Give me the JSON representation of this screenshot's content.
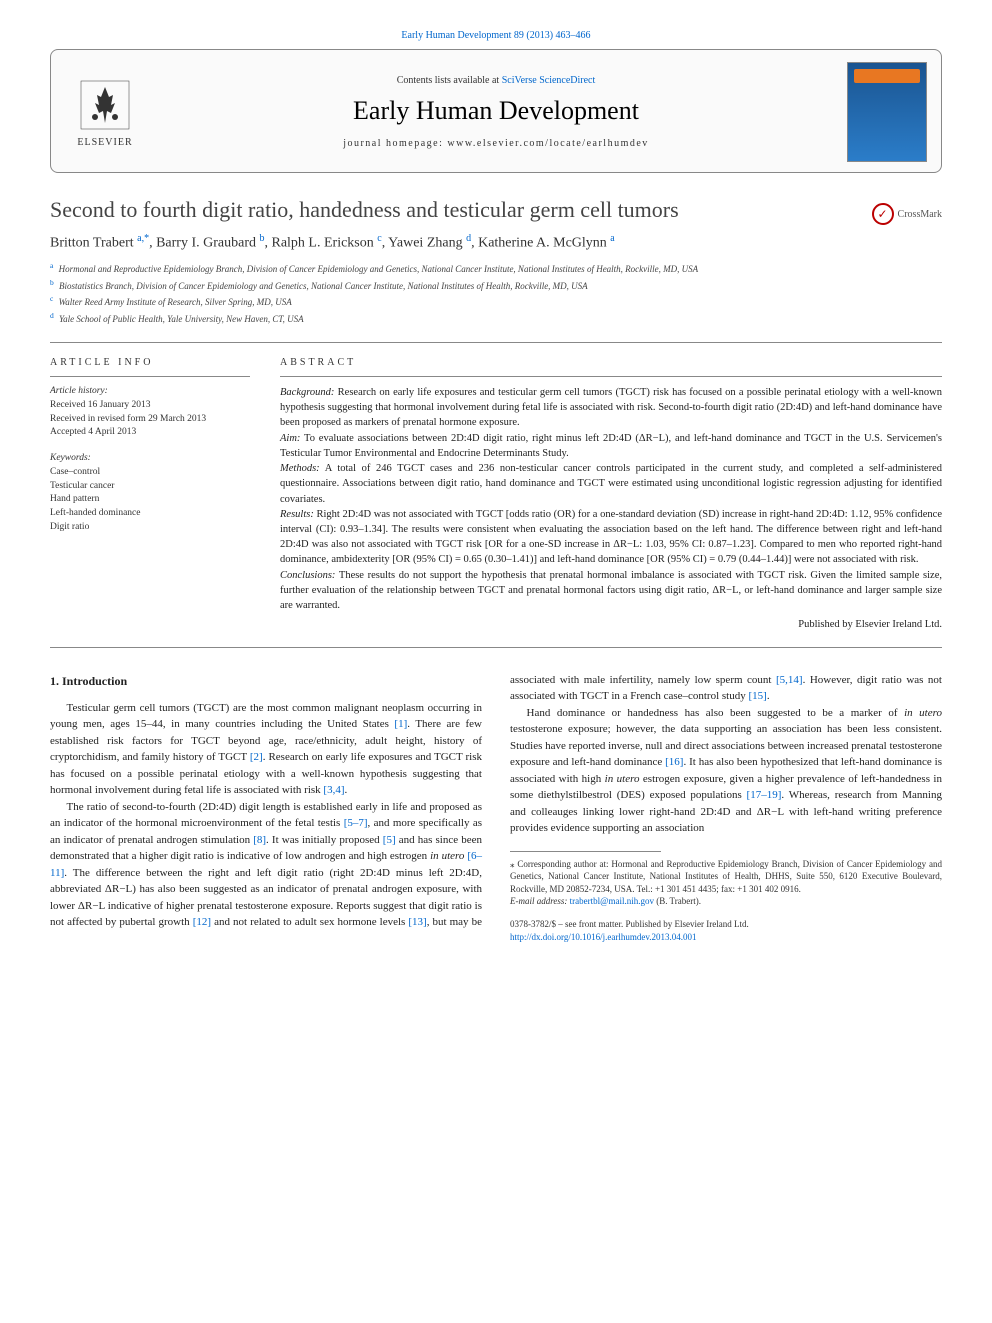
{
  "top_citation": "Early Human Development 89 (2013) 463–466",
  "header": {
    "contents_prefix": "Contents lists available at ",
    "contents_link": "SciVerse ScienceDirect",
    "journal_name": "Early Human Development",
    "homepage_label": "journal homepage: www.elsevier.com/locate/earlhumdev",
    "publisher_logo_text": "ELSEVIER"
  },
  "crossmark_label": "CrossMark",
  "article": {
    "title": "Second to fourth digit ratio, handedness and testicular germ cell tumors",
    "authors_html": "Britton Trabert <sup>a,*</sup>, Barry I. Graubard <sup>b</sup>, Ralph L. Erickson <sup>c</sup>, Yawei Zhang <sup>d</sup>, Katherine A. McGlynn <sup>a</sup>",
    "affiliations": [
      {
        "sup": "a",
        "text": "Hormonal and Reproductive Epidemiology Branch, Division of Cancer Epidemiology and Genetics, National Cancer Institute, National Institutes of Health, Rockville, MD, USA"
      },
      {
        "sup": "b",
        "text": "Biostatistics Branch, Division of Cancer Epidemiology and Genetics, National Cancer Institute, National Institutes of Health, Rockville, MD, USA"
      },
      {
        "sup": "c",
        "text": "Walter Reed Army Institute of Research, Silver Spring, MD, USA"
      },
      {
        "sup": "d",
        "text": "Yale School of Public Health, Yale University, New Haven, CT, USA"
      }
    ]
  },
  "article_info": {
    "header": "ARTICLE INFO",
    "history_label": "Article history:",
    "history": [
      "Received 16 January 2013",
      "Received in revised form 29 March 2013",
      "Accepted 4 April 2013"
    ],
    "keywords_label": "Keywords:",
    "keywords": [
      "Case–control",
      "Testicular cancer",
      "Hand pattern",
      "Left-handed dominance",
      "Digit ratio"
    ]
  },
  "abstract": {
    "header": "ABSTRACT",
    "background_label": "Background:",
    "background": " Research on early life exposures and testicular germ cell tumors (TGCT) risk has focused on a possible perinatal etiology with a well-known hypothesis suggesting that hormonal involvement during fetal life is associated with risk. Second-to-fourth digit ratio (2D:4D) and left-hand dominance have been proposed as markers of prenatal hormone exposure.",
    "aim_label": "Aim:",
    "aim": " To evaluate associations between 2D:4D digit ratio, right minus left 2D:4D (ΔR−L), and left-hand dominance and TGCT in the U.S. Servicemen's Testicular Tumor Environmental and Endocrine Determinants Study.",
    "methods_label": "Methods:",
    "methods": " A total of 246 TGCT cases and 236 non-testicular cancer controls participated in the current study, and completed a self-administered questionnaire. Associations between digit ratio, hand dominance and TGCT were estimated using unconditional logistic regression adjusting for identified covariates.",
    "results_label": "Results:",
    "results": " Right 2D:4D was not associated with TGCT [odds ratio (OR) for a one-standard deviation (SD) increase in right-hand 2D:4D: 1.12, 95% confidence interval (CI): 0.93–1.34]. The results were consistent when evaluating the association based on the left hand. The difference between right and left-hand 2D:4D was also not associated with TGCT risk [OR for a one-SD increase in ΔR−L: 1.03, 95% CI: 0.87–1.23]. Compared to men who reported right-hand dominance, ambidexterity [OR (95% CI) = 0.65 (0.30–1.41)] and left-hand dominance [OR (95% CI) = 0.79 (0.44–1.44)] were not associated with risk.",
    "conclusions_label": "Conclusions:",
    "conclusions": " These results do not support the hypothesis that prenatal hormonal imbalance is associated with TGCT risk. Given the limited sample size, further evaluation of the relationship between TGCT and prenatal hormonal factors using digit ratio, ΔR−L, or left-hand dominance and larger sample size are warranted.",
    "publisher_line": "Published by Elsevier Ireland Ltd."
  },
  "body": {
    "section_title": "1. Introduction",
    "paragraphs": [
      "Testicular germ cell tumors (TGCT) are the most common malignant neoplasm occurring in young men, ages 15–44, in many countries including the United States [1]. There are few established risk factors for TGCT beyond age, race/ethnicity, adult height, history of cryptorchidism, and family history of TGCT [2]. Research on early life exposures and TGCT risk has focused on a possible perinatal etiology with a well-known hypothesis suggesting that hormonal involvement during fetal life is associated with risk [3,4].",
      "The ratio of second-to-fourth (2D:4D) digit length is established early in life and proposed as an indicator of the hormonal microenvironment of the fetal testis [5–7], and more specifically as an indicator of prenatal androgen stimulation [8]. It was initially proposed [5] and has since been demonstrated that a higher digit ratio is indicative of low androgen and high estrogen in utero [6–11]. The difference between the right and left digit ratio (right 2D:4D minus left 2D:4D, abbreviated ΔR−L) has also been suggested as an indicator of prenatal androgen exposure, with lower ΔR−L indicative of higher prenatal testosterone exposure. Reports suggest that digit ratio is not affected by pubertal growth [12] and not related to adult sex hormone levels [13], but may be associated with male infertility, namely low sperm count [5,14]. However, digit ratio was not associated with TGCT in a French case–control study [15].",
      "Hand dominance or handedness has also been suggested to be a marker of in utero testosterone exposure; however, the data supporting an association has been less consistent. Studies have reported inverse, null and direct associations between increased prenatal testosterone exposure and left-hand dominance [16]. It has also been hypothesized that left-hand dominance is associated with high in utero estrogen exposure, given a higher prevalence of left-handedness in some diethylstilbestrol (DES) exposed populations [17–19]. Whereas, research from Manning and colleauges linking lower right-hand 2D:4D and ΔR−L with left-hand writing preference provides evidence supporting an association"
    ]
  },
  "footnotes": {
    "corresponding": "⁎ Corresponding author at: Hormonal and Reproductive Epidemiology Branch, Division of Cancer Epidemiology and Genetics, National Cancer Institute, National Institutes of Health, DHHS, Suite 550, 6120 Executive Boulevard, Rockville, MD 20852-7234, USA. Tel.: +1 301 451 4435; fax: +1 301 402 0916.",
    "email_label": "E-mail address: ",
    "email": "trabertbl@mail.nih.gov",
    "email_suffix": " (B. Trabert)."
  },
  "footer": {
    "copyright": "0378-3782/$ – see front matter. Published by Elsevier Ireland Ltd.",
    "doi": "http://dx.doi.org/10.1016/j.earlhumdev.2013.04.001"
  },
  "colors": {
    "link": "#0066cc",
    "text": "#222222",
    "border": "#888888",
    "orange": "#e87722",
    "cover_blue": "#2b7dc9"
  }
}
